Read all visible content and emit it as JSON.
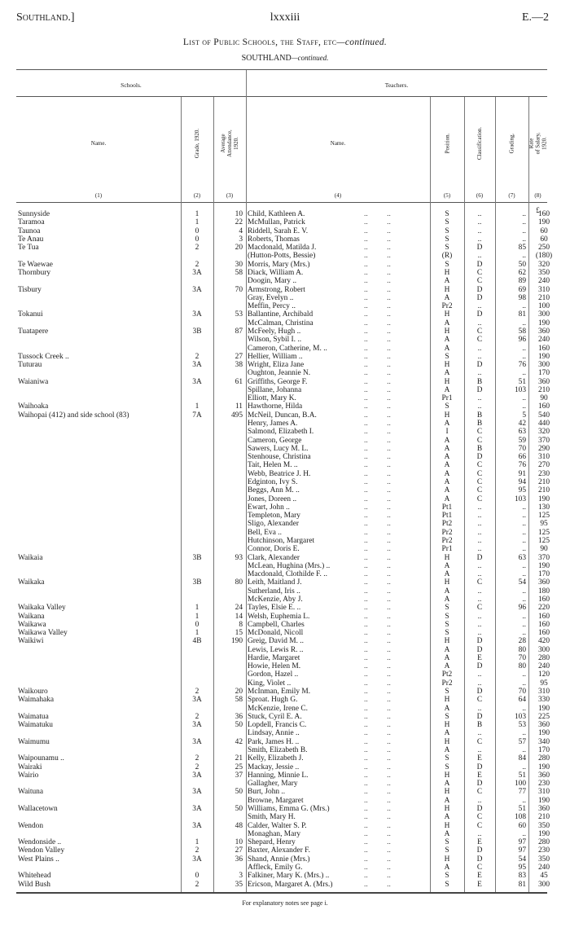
{
  "header": {
    "left": "Southland.]",
    "page": "lxxxiii",
    "right": "E.—2"
  },
  "title": {
    "main": "List of Public Schools, the Staff, etc",
    "cont": "—continued."
  },
  "subtitle": {
    "main": "SOUTHLAND",
    "cont": "—continued."
  },
  "groups": {
    "schools": "Schools.",
    "teachers": "Teachers."
  },
  "columns": [
    {
      "label": "Name.",
      "num": "(1)"
    },
    {
      "label": "Grade, 1920.",
      "num": "(2)"
    },
    {
      "label": "Average\nAttendance,\n1920.",
      "num": "(3)"
    },
    {
      "label": "Name.",
      "num": "(4)"
    },
    {
      "label": "Position.",
      "num": "(5)"
    },
    {
      "label": "Classification.",
      "num": "(6)"
    },
    {
      "label": "Grading.",
      "num": "(7)"
    },
    {
      "label": "Rate\nof Salary,\n1920.",
      "num": "(8)"
    }
  ],
  "currency": "£",
  "rows": [
    [
      "Sunnyside",
      "1",
      "10",
      "Child, Kathleen A.",
      "S",
      "..",
      "..",
      "160"
    ],
    [
      "Taramoa",
      "1",
      "22",
      "McMullan, Patrick",
      "S",
      "..",
      "..",
      "190"
    ],
    [
      "Taunoa",
      "0",
      "4",
      "Riddell, Sarah E. V.",
      "S",
      "..",
      "..",
      "60"
    ],
    [
      "Te Anau",
      "0",
      "3",
      "Roberts, Thomas",
      "S",
      "..",
      "..",
      "60"
    ],
    [
      "Te Tua",
      "2",
      "20",
      "Macdonald, Matilda J.",
      "S",
      "D",
      "85",
      "250"
    ],
    [
      "",
      "",
      "",
      "(Hutton-Potts, Bessie)",
      "(R)",
      "..",
      "..",
      "(180)"
    ],
    [
      "Te Waewae",
      "2",
      "30",
      "Morris, Mary (Mrs.)",
      "S",
      "D",
      "50",
      "320"
    ],
    [
      "Thornbury",
      "3A",
      "58",
      "Diack, William A.",
      "H",
      "C",
      "62",
      "350"
    ],
    [
      "",
      "",
      "",
      "Doogin, Mary ..",
      "A",
      "C",
      "89",
      "240"
    ],
    [
      "Tisbury",
      "3A",
      "70",
      "Armstrong, Robert",
      "H",
      "D",
      "69",
      "310"
    ],
    [
      "",
      "",
      "",
      "Gray, Evelyn ..",
      "A",
      "D",
      "98",
      "210"
    ],
    [
      "",
      "",
      "",
      "Meffin, Percy ..",
      "Pr2",
      "..",
      "..",
      "100"
    ],
    [
      "Tokanui",
      "3A",
      "53",
      "Ballantine, Archibald",
      "H",
      "D",
      "81",
      "300"
    ],
    [
      "",
      "",
      "",
      "McCalman, Christina",
      "A",
      "..",
      "..",
      "190"
    ],
    [
      "Tuatapere",
      "3B",
      "87",
      "McFeely, Hugh ..",
      "H",
      "C",
      "58",
      "360"
    ],
    [
      "",
      "",
      "",
      "Wilson, Sybil I. ..",
      "A",
      "C",
      "96",
      "240"
    ],
    [
      "",
      "",
      "",
      "Cameron, Catherine, M. ..",
      "A",
      "..",
      "..",
      "160"
    ],
    [
      "Tussock Creek ..",
      "2",
      "27",
      "Hellier, William ..",
      "S",
      "..",
      "..",
      "190"
    ],
    [
      "Tuturau",
      "3A",
      "38",
      "Wright, Eliza Jane",
      "H",
      "D",
      "76",
      "300"
    ],
    [
      "",
      "",
      "",
      "Oughton, Jeannie N.",
      "A",
      "..",
      "..",
      "170"
    ],
    [
      "Waianiwa",
      "3A",
      "61",
      "Griffiths, George F.",
      "H",
      "B",
      "51",
      "360"
    ],
    [
      "",
      "",
      "",
      "Spillane, Johanna",
      "A",
      "D",
      "103",
      "210"
    ],
    [
      "",
      "",
      "",
      "Elliott, Mary K.",
      "Pr1",
      "..",
      "..",
      "90"
    ],
    [
      "Waihoaka",
      "1",
      "11",
      "Hawthorne, Hilda",
      "S",
      "..",
      "..",
      "160"
    ],
    [
      "Waihopai (412) and side school (83)",
      "7A",
      "495",
      "McNeil, Duncan, B.A.",
      "H",
      "B",
      "5",
      "540"
    ],
    [
      "",
      "",
      "",
      "Henry, James A.",
      "A",
      "B",
      "42",
      "440"
    ],
    [
      "",
      "",
      "",
      "Salmond, Elizabeth I.",
      "I",
      "C",
      "63",
      "320"
    ],
    [
      "",
      "",
      "",
      "Cameron, George",
      "A",
      "C",
      "59",
      "370"
    ],
    [
      "",
      "",
      "",
      "Sawers, Lucy M. L.",
      "A",
      "B",
      "70",
      "290"
    ],
    [
      "",
      "",
      "",
      "Stenhouse, Christina",
      "A",
      "D",
      "66",
      "310"
    ],
    [
      "",
      "",
      "",
      "Tait, Helen M. ..",
      "A",
      "C",
      "76",
      "270"
    ],
    [
      "",
      "",
      "",
      "Webb, Beatrice J. H.",
      "A",
      "C",
      "91",
      "230"
    ],
    [
      "",
      "",
      "",
      "Edginton, Ivy S.",
      "A",
      "C",
      "94",
      "210"
    ],
    [
      "",
      "",
      "",
      "Beggs, Ann M. ..",
      "A",
      "C",
      "95",
      "210"
    ],
    [
      "",
      "",
      "",
      "Jones, Doreen ..",
      "A",
      "C",
      "103",
      "190"
    ],
    [
      "",
      "",
      "",
      "Ewart, John ..",
      "Pt1",
      "..",
      "..",
      "130"
    ],
    [
      "",
      "",
      "",
      "Templeton, Mary",
      "Pt1",
      "..",
      "..",
      "125"
    ],
    [
      "",
      "",
      "",
      "Sligo, Alexander",
      "Pt2",
      "..",
      "..",
      "95"
    ],
    [
      "",
      "",
      "",
      "Bell, Eva ..",
      "Pr2",
      "..",
      "..",
      "125"
    ],
    [
      "",
      "",
      "",
      "Hutchinson, Margaret",
      "Pr2",
      "..",
      "..",
      "125"
    ],
    [
      "",
      "",
      "",
      "Connor, Doris E.",
      "Pr1",
      "..",
      "..",
      "90"
    ],
    [
      "Waikaia",
      "3B",
      "93",
      "Clark, Alexander",
      "H",
      "D",
      "63",
      "370"
    ],
    [
      "",
      "",
      "",
      "McLean, Hughina (Mrs.) ..",
      "A",
      "..",
      "..",
      "190"
    ],
    [
      "",
      "",
      "",
      "Macdonald, Clothilde F. ..",
      "A",
      "..",
      "..",
      "170"
    ],
    [
      "Waikaka",
      "3B",
      "80",
      "Leith, Maitland J.",
      "H",
      "C",
      "54",
      "360"
    ],
    [
      "",
      "",
      "",
      "Sutherland, Iris ..",
      "A",
      "..",
      "..",
      "180"
    ],
    [
      "",
      "",
      "",
      "McKenzie, Aby J.",
      "A",
      "..",
      "..",
      "160"
    ],
    [
      "Waikaka Valley",
      "1",
      "24",
      "Tayles, Elsie E. ..",
      "S",
      "C",
      "96",
      "220"
    ],
    [
      "Waikana",
      "1",
      "14",
      "Welsh, Euphemia L.",
      "S",
      "..",
      "..",
      "160"
    ],
    [
      "Waikawa",
      "0",
      "8",
      "Campbell, Charles",
      "S",
      "..",
      "..",
      "160"
    ],
    [
      "Waikawa Valley",
      "1",
      "15",
      "McDonald, Nicoll",
      "S",
      "..",
      "..",
      "160"
    ],
    [
      "Waikiwi",
      "4B",
      "190",
      "Greig, David M. ..",
      "H",
      "D",
      "28",
      "420"
    ],
    [
      "",
      "",
      "",
      "Lewis, Lewis R. ..",
      "A",
      "D",
      "80",
      "300"
    ],
    [
      "",
      "",
      "",
      "Hardie, Margaret",
      "A",
      "E",
      "70",
      "280"
    ],
    [
      "",
      "",
      "",
      "Howie, Helen M.",
      "A",
      "D",
      "80",
      "240"
    ],
    [
      "",
      "",
      "",
      "Gordon, Hazel ..",
      "Pt2",
      "..",
      "..",
      "120"
    ],
    [
      "",
      "",
      "",
      "King, Violet ..",
      "Pr2",
      "..",
      "..",
      "95"
    ],
    [
      "Waikouro",
      "2",
      "20",
      "McInman, Emily M.",
      "S",
      "D",
      "70",
      "310"
    ],
    [
      "Waimahaka",
      "3A",
      "58",
      "Sproat. Hugh G.",
      "H",
      "C",
      "64",
      "330"
    ],
    [
      "",
      "",
      "",
      "McKenzie, Irene C.",
      "A",
      "..",
      "..",
      "190"
    ],
    [
      "Waimatua",
      "2",
      "36",
      "Stuck, Cyril E. A.",
      "S",
      "D",
      "103",
      "225"
    ],
    [
      "Waimatuku",
      "3A",
      "50",
      "Lopdell, Francis C.",
      "H",
      "B",
      "53",
      "360"
    ],
    [
      "",
      "",
      "",
      "Lindsay, Annie ..",
      "A",
      "..",
      "..",
      "190"
    ],
    [
      "Waimumu",
      "3A",
      "42",
      "Park, James H. ..",
      "H",
      "C",
      "57",
      "340"
    ],
    [
      "",
      "",
      "",
      "Smith, Elizabeth B.",
      "A",
      "..",
      "..",
      "170"
    ],
    [
      "Waipounamu ..",
      "2",
      "21",
      "Kelly, Elizabeth J.",
      "S",
      "E",
      "84",
      "280"
    ],
    [
      "Wairaki",
      "2",
      "25",
      "Mackay, Jessie ..",
      "S",
      "D",
      "..",
      "190"
    ],
    [
      "Wairio",
      "3A",
      "37",
      "Hanning, Minnie L.",
      "H",
      "E",
      "51",
      "360"
    ],
    [
      "",
      "",
      "",
      "Gallagher, Mary",
      "A",
      "D",
      "100",
      "230"
    ],
    [
      "Waituna",
      "3A",
      "50",
      "Burt, John ..",
      "H",
      "C",
      "77",
      "310"
    ],
    [
      "",
      "",
      "",
      "Browne, Margaret",
      "A",
      "..",
      "..",
      "190"
    ],
    [
      "Wallacetown",
      "3A",
      "50",
      "Williams, Emma G. (Mrs.)",
      "H",
      "D",
      "51",
      "360"
    ],
    [
      "",
      "",
      "",
      "Smith, Mary H.",
      "A",
      "C",
      "108",
      "210"
    ],
    [
      "Wendon",
      "3A",
      "48",
      "Calder, Walter S. P.",
      "H",
      "C",
      "60",
      "350"
    ],
    [
      "",
      "",
      "",
      "Monaghan, Mary",
      "A",
      "..",
      "..",
      "190"
    ],
    [
      "Wendonside ..",
      "1",
      "10",
      "Shepard, Henry",
      "S",
      "E",
      "97",
      "280"
    ],
    [
      "Wendon Valley",
      "2",
      "27",
      "Baxter, Alexander F.",
      "S",
      "D",
      "97",
      "230"
    ],
    [
      "West Plains ..",
      "3A",
      "36",
      "Shand, Annie (Mrs.)",
      "H",
      "D",
      "54",
      "350"
    ],
    [
      "",
      "",
      "",
      "Affleck, Emily G.",
      "A",
      "C",
      "95",
      "240"
    ],
    [
      "Whitehead",
      "0",
      "3",
      "Falkiner, Mary K. (Mrs.) ..",
      "S",
      "E",
      "83",
      "45"
    ],
    [
      "Wild Bush",
      "2",
      "35",
      "Ericson, Margaret A. (Mrs.)",
      "S",
      "E",
      "81",
      "300"
    ]
  ],
  "footnote": "For explanatory notes see page i."
}
